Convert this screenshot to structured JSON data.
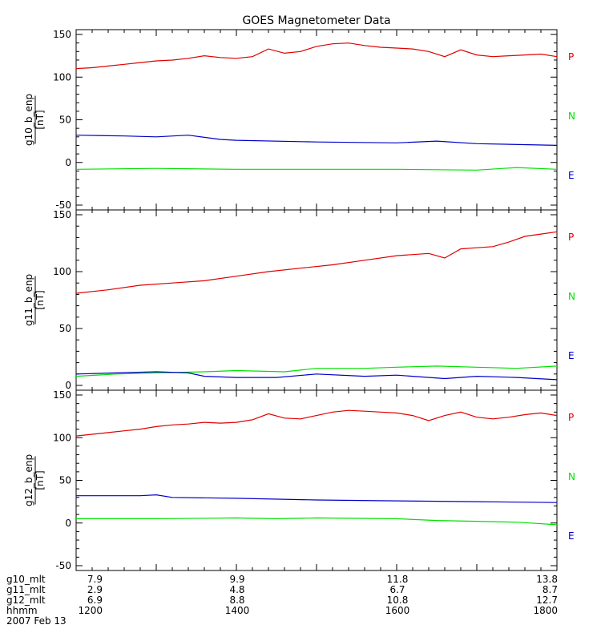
{
  "chart_data": {
    "type": "line",
    "title": "GOES Magnetometer Data",
    "x_range": [
      1200,
      1800
    ],
    "x_ticks": [
      1200,
      1300,
      1400,
      1500,
      1600,
      1700,
      1800
    ],
    "panels": [
      {
        "ylabel": "g10_b_enp",
        "yunit": "[nT]",
        "ylim": [
          -50,
          150
        ],
        "yticks": [
          -50,
          0,
          50,
          100,
          150
        ],
        "legend": [
          {
            "label": "P",
            "color": "#e00000"
          },
          {
            "label": "N",
            "color": "#00e000"
          },
          {
            "label": "E",
            "color": "#0000c8"
          }
        ],
        "series": [
          {
            "name": "P",
            "color": "#e00000",
            "x": [
              1200,
              1220,
              1240,
              1260,
              1280,
              1300,
              1320,
              1340,
              1360,
              1380,
              1400,
              1420,
              1440,
              1460,
              1480,
              1500,
              1520,
              1540,
              1560,
              1580,
              1600,
              1620,
              1640,
              1660,
              1680,
              1700,
              1720,
              1740,
              1760,
              1780,
              1800
            ],
            "y": [
              110,
              111,
              113,
              115,
              117,
              119,
              120,
              122,
              125,
              123,
              122,
              124,
              133,
              128,
              130,
              136,
              139,
              140,
              137,
              135,
              134,
              133,
              130,
              124,
              132,
              126,
              124,
              125,
              126,
              127,
              124
            ]
          },
          {
            "name": "N",
            "color": "#00e000",
            "x": [
              1200,
              1300,
              1400,
              1500,
              1600,
              1700,
              1750,
              1800
            ],
            "y": [
              -8,
              -7,
              -8,
              -8,
              -8,
              -9,
              -6,
              -8
            ]
          },
          {
            "name": "E",
            "color": "#0000c8",
            "x": [
              1200,
              1260,
              1300,
              1340,
              1380,
              1400,
              1500,
              1600,
              1650,
              1700,
              1800
            ],
            "y": [
              32,
              31,
              30,
              32,
              27,
              26,
              24,
              23,
              25,
              22,
              20
            ]
          }
        ]
      },
      {
        "ylabel": "g11_b_enp",
        "yunit": "[nT]",
        "ylim": [
          0,
          150
        ],
        "yticks": [
          0,
          50,
          100,
          150
        ],
        "legend": [
          {
            "label": "P",
            "color": "#e00000"
          },
          {
            "label": "N",
            "color": "#00e000"
          },
          {
            "label": "E",
            "color": "#0000c8"
          }
        ],
        "series": [
          {
            "name": "P",
            "color": "#e00000",
            "x": [
              1200,
              1240,
              1280,
              1320,
              1360,
              1400,
              1440,
              1480,
              1520,
              1560,
              1600,
              1640,
              1660,
              1680,
              1700,
              1720,
              1740,
              1760,
              1780,
              1800
            ],
            "y": [
              81,
              84,
              88,
              90,
              92,
              96,
              100,
              103,
              106,
              110,
              114,
              116,
              112,
              120,
              121,
              122,
              126,
              131,
              133,
              135
            ]
          },
          {
            "name": "N",
            "color": "#00e000",
            "x": [
              1200,
              1250,
              1300,
              1360,
              1400,
              1460,
              1500,
              1560,
              1600,
              1650,
              1700,
              1750,
              1800
            ],
            "y": [
              8,
              10,
              11,
              12,
              13,
              12,
              15,
              15,
              16,
              17,
              16,
              15,
              17
            ]
          },
          {
            "name": "E",
            "color": "#0000c8",
            "x": [
              1200,
              1250,
              1300,
              1340,
              1360,
              1400,
              1450,
              1500,
              1560,
              1600,
              1660,
              1700,
              1750,
              1800
            ],
            "y": [
              10,
              11,
              12,
              11,
              8,
              7,
              7,
              10,
              8,
              9,
              6,
              8,
              7,
              5
            ]
          }
        ]
      },
      {
        "ylabel": "g12_b_enp",
        "yunit": "[nT]",
        "ylim": [
          -50,
          150
        ],
        "yticks": [
          -50,
          0,
          50,
          100,
          150
        ],
        "legend": [
          {
            "label": "P",
            "color": "#e00000"
          },
          {
            "label": "N",
            "color": "#00e000"
          },
          {
            "label": "E",
            "color": "#0000c8"
          }
        ],
        "series": [
          {
            "name": "P",
            "color": "#e00000",
            "x": [
              1200,
              1220,
              1240,
              1260,
              1280,
              1300,
              1320,
              1340,
              1360,
              1380,
              1400,
              1420,
              1440,
              1460,
              1480,
              1500,
              1520,
              1540,
              1560,
              1580,
              1600,
              1620,
              1640,
              1660,
              1680,
              1700,
              1720,
              1740,
              1760,
              1780,
              1800
            ],
            "y": [
              102,
              104,
              106,
              108,
              110,
              113,
              115,
              116,
              118,
              117,
              118,
              121,
              128,
              123,
              122,
              126,
              130,
              132,
              131,
              130,
              129,
              126,
              120,
              126,
              130,
              124,
              122,
              124,
              127,
              129,
              126
            ]
          },
          {
            "name": "N",
            "color": "#00e000",
            "x": [
              1200,
              1300,
              1400,
              1450,
              1500,
              1600,
              1650,
              1700,
              1750,
              1800
            ],
            "y": [
              5,
              5,
              6,
              5,
              6,
              5,
              3,
              2,
              1,
              -2
            ]
          },
          {
            "name": "E",
            "color": "#0000c8",
            "x": [
              1200,
              1280,
              1300,
              1320,
              1400,
              1500,
              1600,
              1700,
              1800
            ],
            "y": [
              32,
              32,
              33,
              30,
              29,
              27,
              26,
              25,
              24
            ]
          }
        ]
      }
    ],
    "footer": {
      "rows": [
        {
          "label": "g10_mlt",
          "values": [
            "7.9",
            "9.9",
            "11.8",
            "13.8"
          ]
        },
        {
          "label": "g11_mlt",
          "values": [
            "2.9",
            "4.8",
            "6.7",
            "8.7"
          ]
        },
        {
          "label": "g12_mlt",
          "values": [
            "6.9",
            "8.8",
            "10.8",
            "12.7"
          ]
        },
        {
          "label": "hhmm",
          "values": [
            "1200",
            "1400",
            "1600",
            "1800"
          ]
        }
      ],
      "date": "2007 Feb 13"
    }
  }
}
